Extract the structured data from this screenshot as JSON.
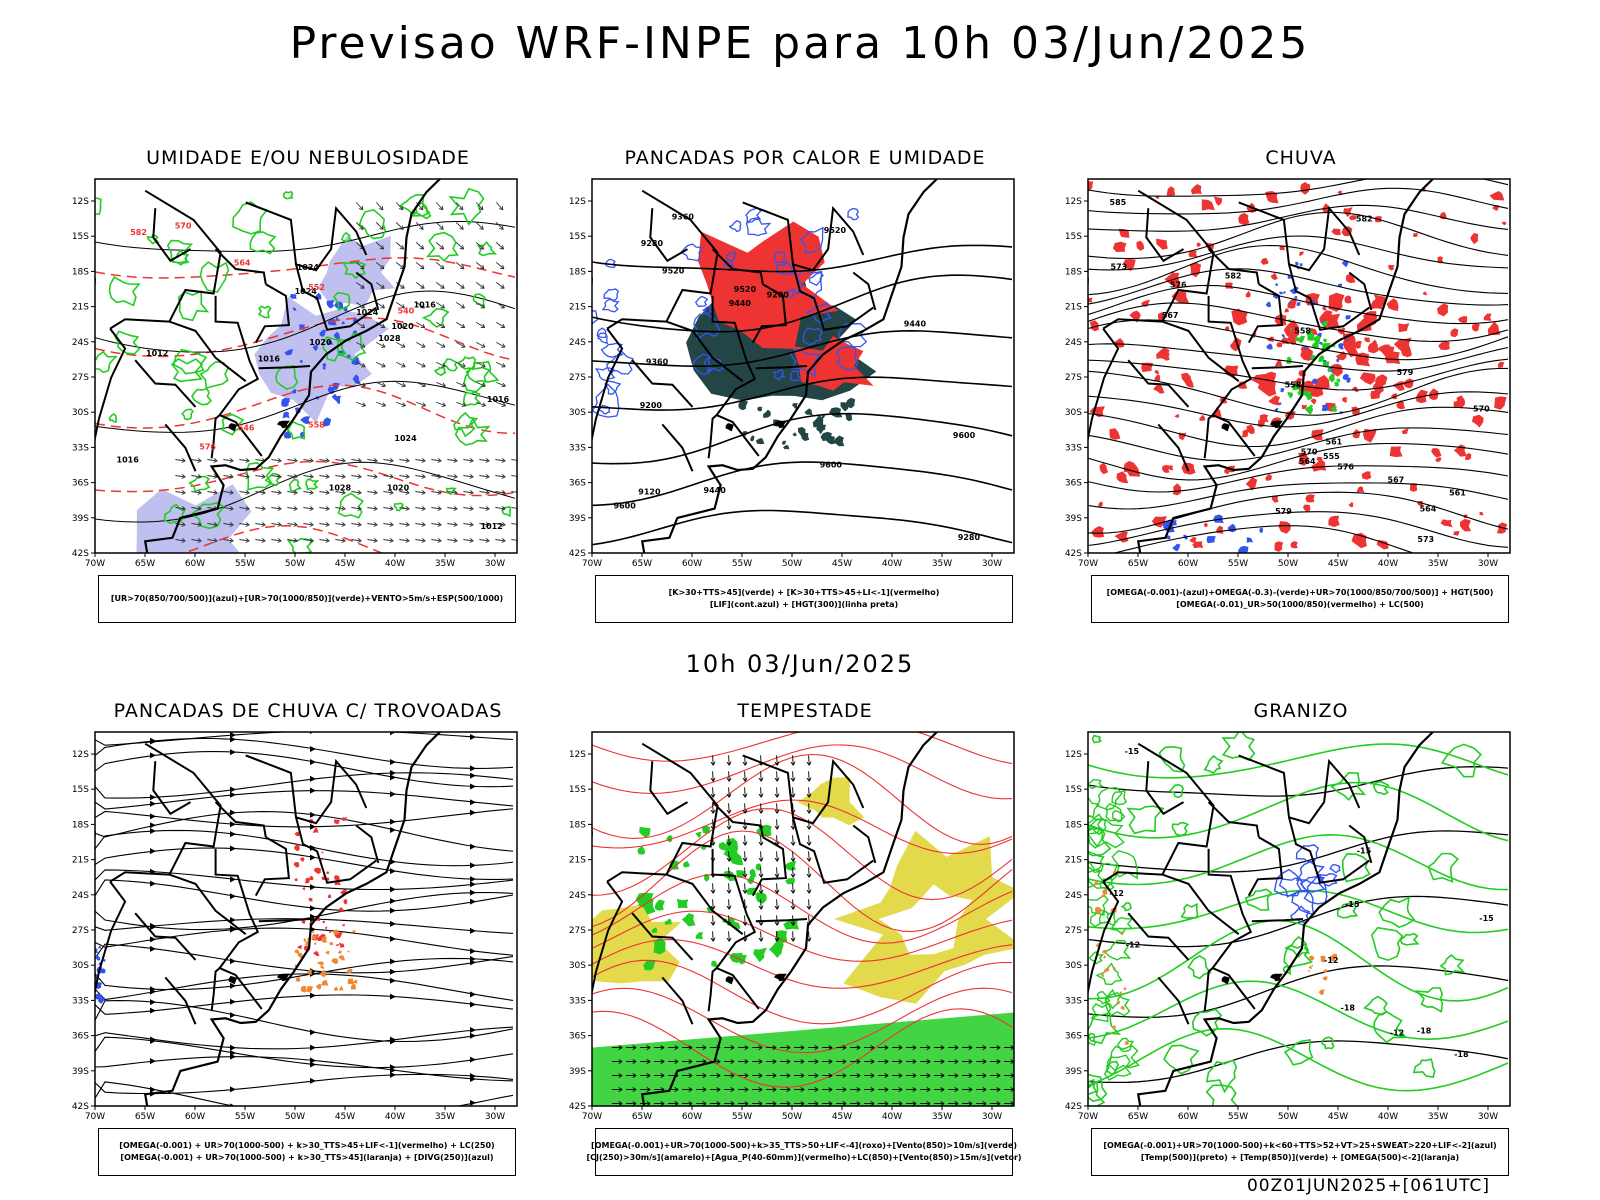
{
  "title": "Previsao WRF-INPE  para 10h 03/Jun/2025",
  "mid_title": "10h 03/Jun/2025",
  "run_info": "00Z01JUN2025+[061UTC]",
  "axes": {
    "lat_ticks": [
      "12S",
      "15S",
      "18S",
      "21S",
      "24S",
      "27S",
      "30S",
      "33S",
      "36S",
      "39S",
      "42S"
    ],
    "lon_ticks": [
      "70W",
      "65W",
      "60W",
      "55W",
      "50W",
      "45W",
      "40W",
      "35W",
      "30W"
    ]
  },
  "colors": {
    "background": "#ffffff",
    "green": "#22cc22",
    "blue": "#3355ee",
    "red": "#ee3333",
    "orange": "#ee8833",
    "yellow": "#e0d840",
    "lavender": "#b8b8ee",
    "dark_teal": "#234545",
    "black": "#000000"
  },
  "panels": [
    {
      "title": "UMIDADE E/OU NEBULOSIDADE",
      "legend": [
        "[UR>70(850/700/500)](azul)+[UR>70(1000/850)](verde)+VENTO>5m/s+ESP(500/1000)"
      ],
      "contour_labels": [
        "1016",
        "1016",
        "1016",
        "1020",
        "1024",
        "1024",
        "1024",
        "1020",
        "1028",
        "1028",
        "1020",
        "1024",
        "1012",
        "1012",
        "1016",
        "570",
        "576",
        "582",
        "564",
        "558",
        "552",
        "546",
        "540"
      ]
    },
    {
      "title": "PANCADAS POR CALOR E UMIDADE",
      "legend": [
        "[K>30+TTS>45](verde) + [K>30+TTS>45+LI<-1](vermelho)",
        "[LIF](cont.azul) + [HGT(300)](linha preta)"
      ],
      "contour_labels": [
        "9600",
        "9600",
        "9600",
        "9520",
        "9520",
        "9520",
        "9440",
        "9440",
        "9440",
        "9360",
        "9360",
        "9280",
        "9280",
        "9200",
        "9200",
        "9120"
      ]
    },
    {
      "title": "CHUVA",
      "legend": [
        "[OMEGA(-0.001)-(azul)+OMEGA(-0.3)-(verde)+UR>70(1000/850/700/500)] + HGT(500)",
        "[OMEGA(-0.01)_UR>50(1000/850)(vermelho) + LC(500)"
      ],
      "contour_labels": [
        "585",
        "582",
        "579",
        "576",
        "573",
        "570",
        "567",
        "564",
        "561",
        "558",
        "555",
        "582",
        "579",
        "576",
        "573",
        "570",
        "567",
        "564",
        "561",
        "558"
      ]
    },
    {
      "title": "PANCADAS DE CHUVA C/ TROVOADAS",
      "legend": [
        "[OMEGA(-0.001) + UR>70(1000-500) + k>30_TTS>45+LIF<-1](vermelho) + LC(250)",
        "[OMEGA(-0.001) + UR>70(1000-500) + k>30_TTS>45](laranja) + [DIVG(250)](azul)"
      ],
      "contour_labels": []
    },
    {
      "title": "TEMPESTADE",
      "legend": [
        "[OMEGA(-0.001)+UR>70(1000-500)+k>35_TTS>50+LIF<-4](roxo)+[Vento(850)>10m/s](verde)",
        "[CJ(250)>30m/s](amarelo)+[Agua_P(40-60mm)](vermelho)+LC(850)+[Vento(850)>15m/s](vetor)"
      ],
      "contour_labels": []
    },
    {
      "title": "GRANIZO",
      "legend": [
        "[OMEGA(-0.001)+UR>70(1000-500)+k<60+TTS>52+VT>25+SWEAT>220+LIF<-2](azul)",
        "[Temp(500)](preto) + [Temp(850)](verde) + [OMEGA(500)<-2](laranja)"
      ],
      "contour_labels": [
        "-12",
        "-12",
        "-12",
        "-12",
        "-15",
        "-15",
        "-15",
        "-15",
        "-18",
        "-18",
        "-18"
      ]
    }
  ]
}
